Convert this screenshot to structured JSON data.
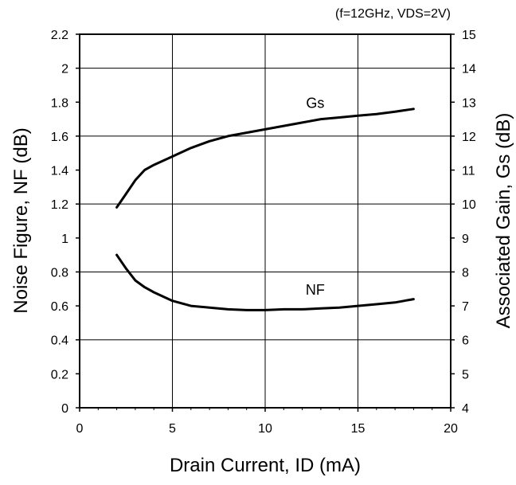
{
  "chart_data": {
    "type": "line",
    "title": "",
    "annotation": "(f=12GHz, VDS=2V)",
    "xlabel": "Drain Current, ID (mA)",
    "ylabel_left": "Noise Figure, NF (dB)",
    "ylabel_right": "Associated Gain, Gs (dB)",
    "xlim": [
      0,
      20
    ],
    "ylim_left": [
      0,
      2.2
    ],
    "ylim_right": [
      4,
      15
    ],
    "grid": true,
    "x_ticks": [
      "0",
      "5",
      "10",
      "15",
      "20"
    ],
    "y_left_ticks": [
      "0",
      "0.2",
      "0.4",
      "0.6",
      "0.8",
      "1",
      "1.2",
      "1.4",
      "1.6",
      "1.8",
      "2",
      "2.2"
    ],
    "y_right_ticks": [
      "4",
      "5",
      "6",
      "7",
      "8",
      "9",
      "10",
      "11",
      "12",
      "13",
      "14",
      "15"
    ],
    "series": [
      {
        "name": "Gs",
        "axis": "right",
        "x": [
          2,
          2.5,
          3,
          3.5,
          4,
          5,
          6,
          7,
          8,
          9,
          10,
          11,
          12,
          13,
          14,
          15,
          16,
          17,
          18
        ],
        "y": [
          9.9,
          10.3,
          10.7,
          11.0,
          11.15,
          11.4,
          11.65,
          11.85,
          12.0,
          12.1,
          12.2,
          12.3,
          12.4,
          12.5,
          12.55,
          12.6,
          12.65,
          12.72,
          12.8
        ]
      },
      {
        "name": "NF",
        "axis": "left",
        "x": [
          2,
          2.5,
          3,
          3.5,
          4,
          5,
          6,
          7,
          8,
          9,
          10,
          11,
          12,
          13,
          14,
          15,
          16,
          17,
          18
        ],
        "y": [
          0.9,
          0.82,
          0.75,
          0.71,
          0.68,
          0.63,
          0.6,
          0.59,
          0.58,
          0.575,
          0.575,
          0.58,
          0.58,
          0.585,
          0.59,
          0.6,
          0.61,
          0.62,
          0.64
        ]
      }
    ],
    "series_labels": [
      {
        "text": "Gs",
        "series": 0,
        "x": 12.7,
        "y": 13.0
      },
      {
        "text": "NF",
        "series": 1,
        "x": 12.7,
        "y": 0.7
      }
    ]
  }
}
